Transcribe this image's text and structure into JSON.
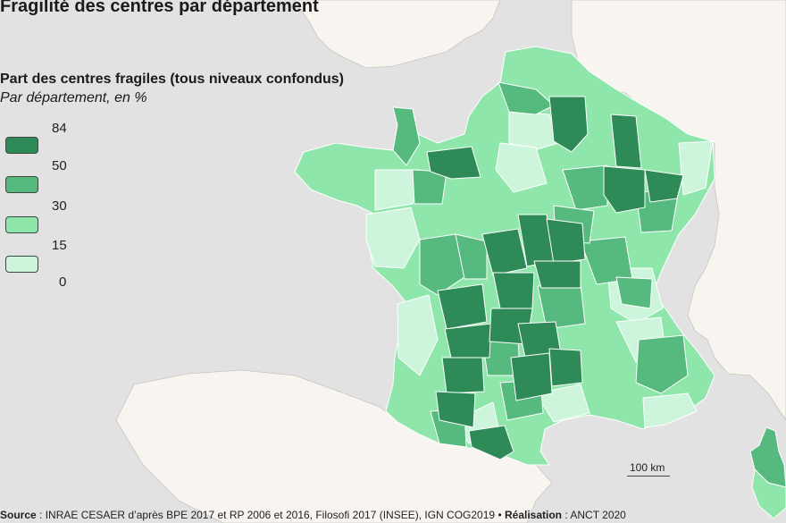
{
  "title": "Fragilité des centres par département",
  "legend": {
    "title": "Part des centres fragiles (tous niveaux confondus)",
    "subtitle": "Par département, en %",
    "breaks": [
      "84",
      "50",
      "30",
      "15",
      "0"
    ],
    "classes": [
      {
        "range": "50 – 84",
        "color": "#2e8b57"
      },
      {
        "range": "30 – 50",
        "color": "#56b97e"
      },
      {
        "range": "15 – 30",
        "color": "#8ee6ab"
      },
      {
        "range": "0 – 15",
        "color": "#ccf5dc"
      }
    ]
  },
  "scale": {
    "label": "100 km"
  },
  "source": {
    "source_label": "Source",
    "source_text": "INRAE CESAER d’après BPE 2017 et RP 2006 et 2016, Filosofi 2017 (INSEE), IGN COG2019",
    "sep": "•",
    "realisation_label": "Réalisation",
    "realisation_text": "ANCT 2020"
  },
  "colors": {
    "sea": "#e2e2e2",
    "neighbor_land": "#f8f5f1",
    "border": "#ffffff"
  }
}
